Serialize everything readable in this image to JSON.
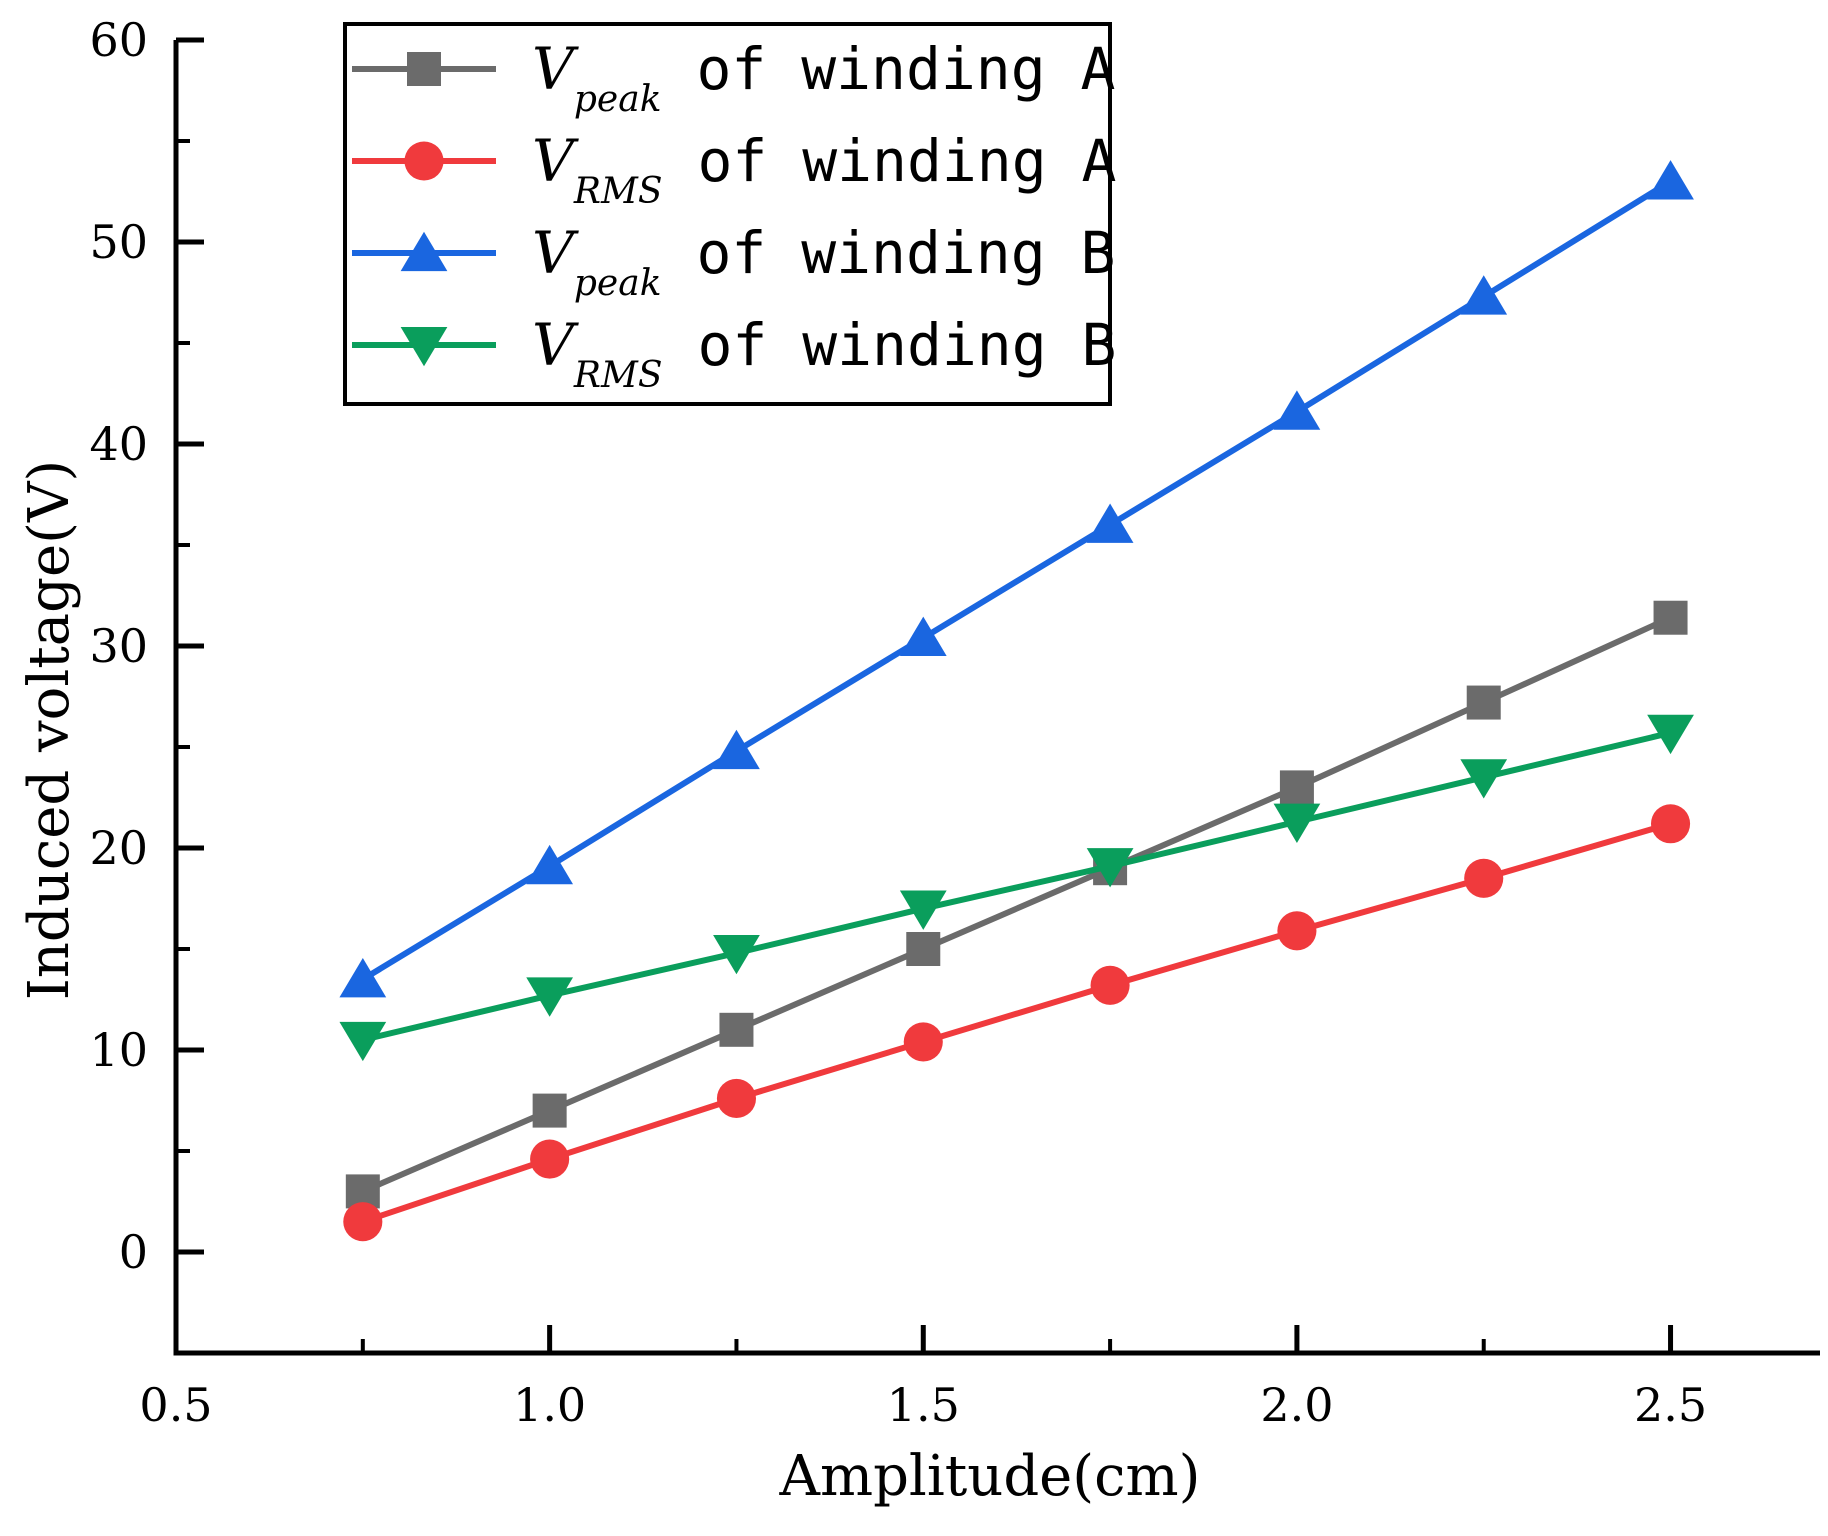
{
  "chart_data": {
    "type": "line",
    "xlabel": "Amplitude(cm)",
    "ylabel": "Induced voltage(V)",
    "xlim": [
      0.5,
      2.7
    ],
    "ylim": [
      -5,
      60
    ],
    "xticks": [
      "0.5",
      "1.0",
      "1.5",
      "2.0",
      "2.5"
    ],
    "xtick_values": [
      0.5,
      1.0,
      1.5,
      2.0,
      2.5
    ],
    "yticks": [
      "0",
      "10",
      "20",
      "30",
      "40",
      "50",
      "60"
    ],
    "ytick_values": [
      0,
      10,
      20,
      30,
      40,
      50,
      60
    ],
    "x": [
      0.75,
      1.0,
      1.25,
      1.5,
      1.75,
      2.0,
      2.25,
      2.5
    ],
    "legend_position": "top-left",
    "series": [
      {
        "name": "Vpeak of winding A",
        "symbol": "V",
        "subscript": "peak",
        "suffix": " of winding A",
        "marker": "square",
        "color": "#6b6b6b",
        "values": [
          3.0,
          7.0,
          11.0,
          15.0,
          19.0,
          23.0,
          27.2,
          31.4
        ]
      },
      {
        "name": "VRMS of winding A",
        "symbol": "V",
        "subscript": "RMS",
        "suffix": " of winding A",
        "marker": "circle",
        "color": "#f03a3d",
        "values": [
          1.5,
          4.6,
          7.6,
          10.4,
          13.2,
          15.9,
          18.5,
          21.2
        ]
      },
      {
        "name": "Vpeak of winding B",
        "symbol": "V",
        "subscript": "peak",
        "suffix": " of winding B",
        "marker": "triangle-up",
        "color": "#1a66e0",
        "values": [
          13.5,
          19.1,
          24.8,
          30.4,
          36.0,
          41.6,
          47.3,
          53.0
        ]
      },
      {
        "name": "VRMS of winding B",
        "symbol": "V",
        "subscript": "RMS",
        "suffix": " of winding B",
        "marker": "triangle-down",
        "color": "#0a9e5c",
        "values": [
          10.5,
          12.7,
          14.8,
          17.0,
          19.1,
          21.3,
          23.5,
          25.7
        ]
      }
    ]
  }
}
